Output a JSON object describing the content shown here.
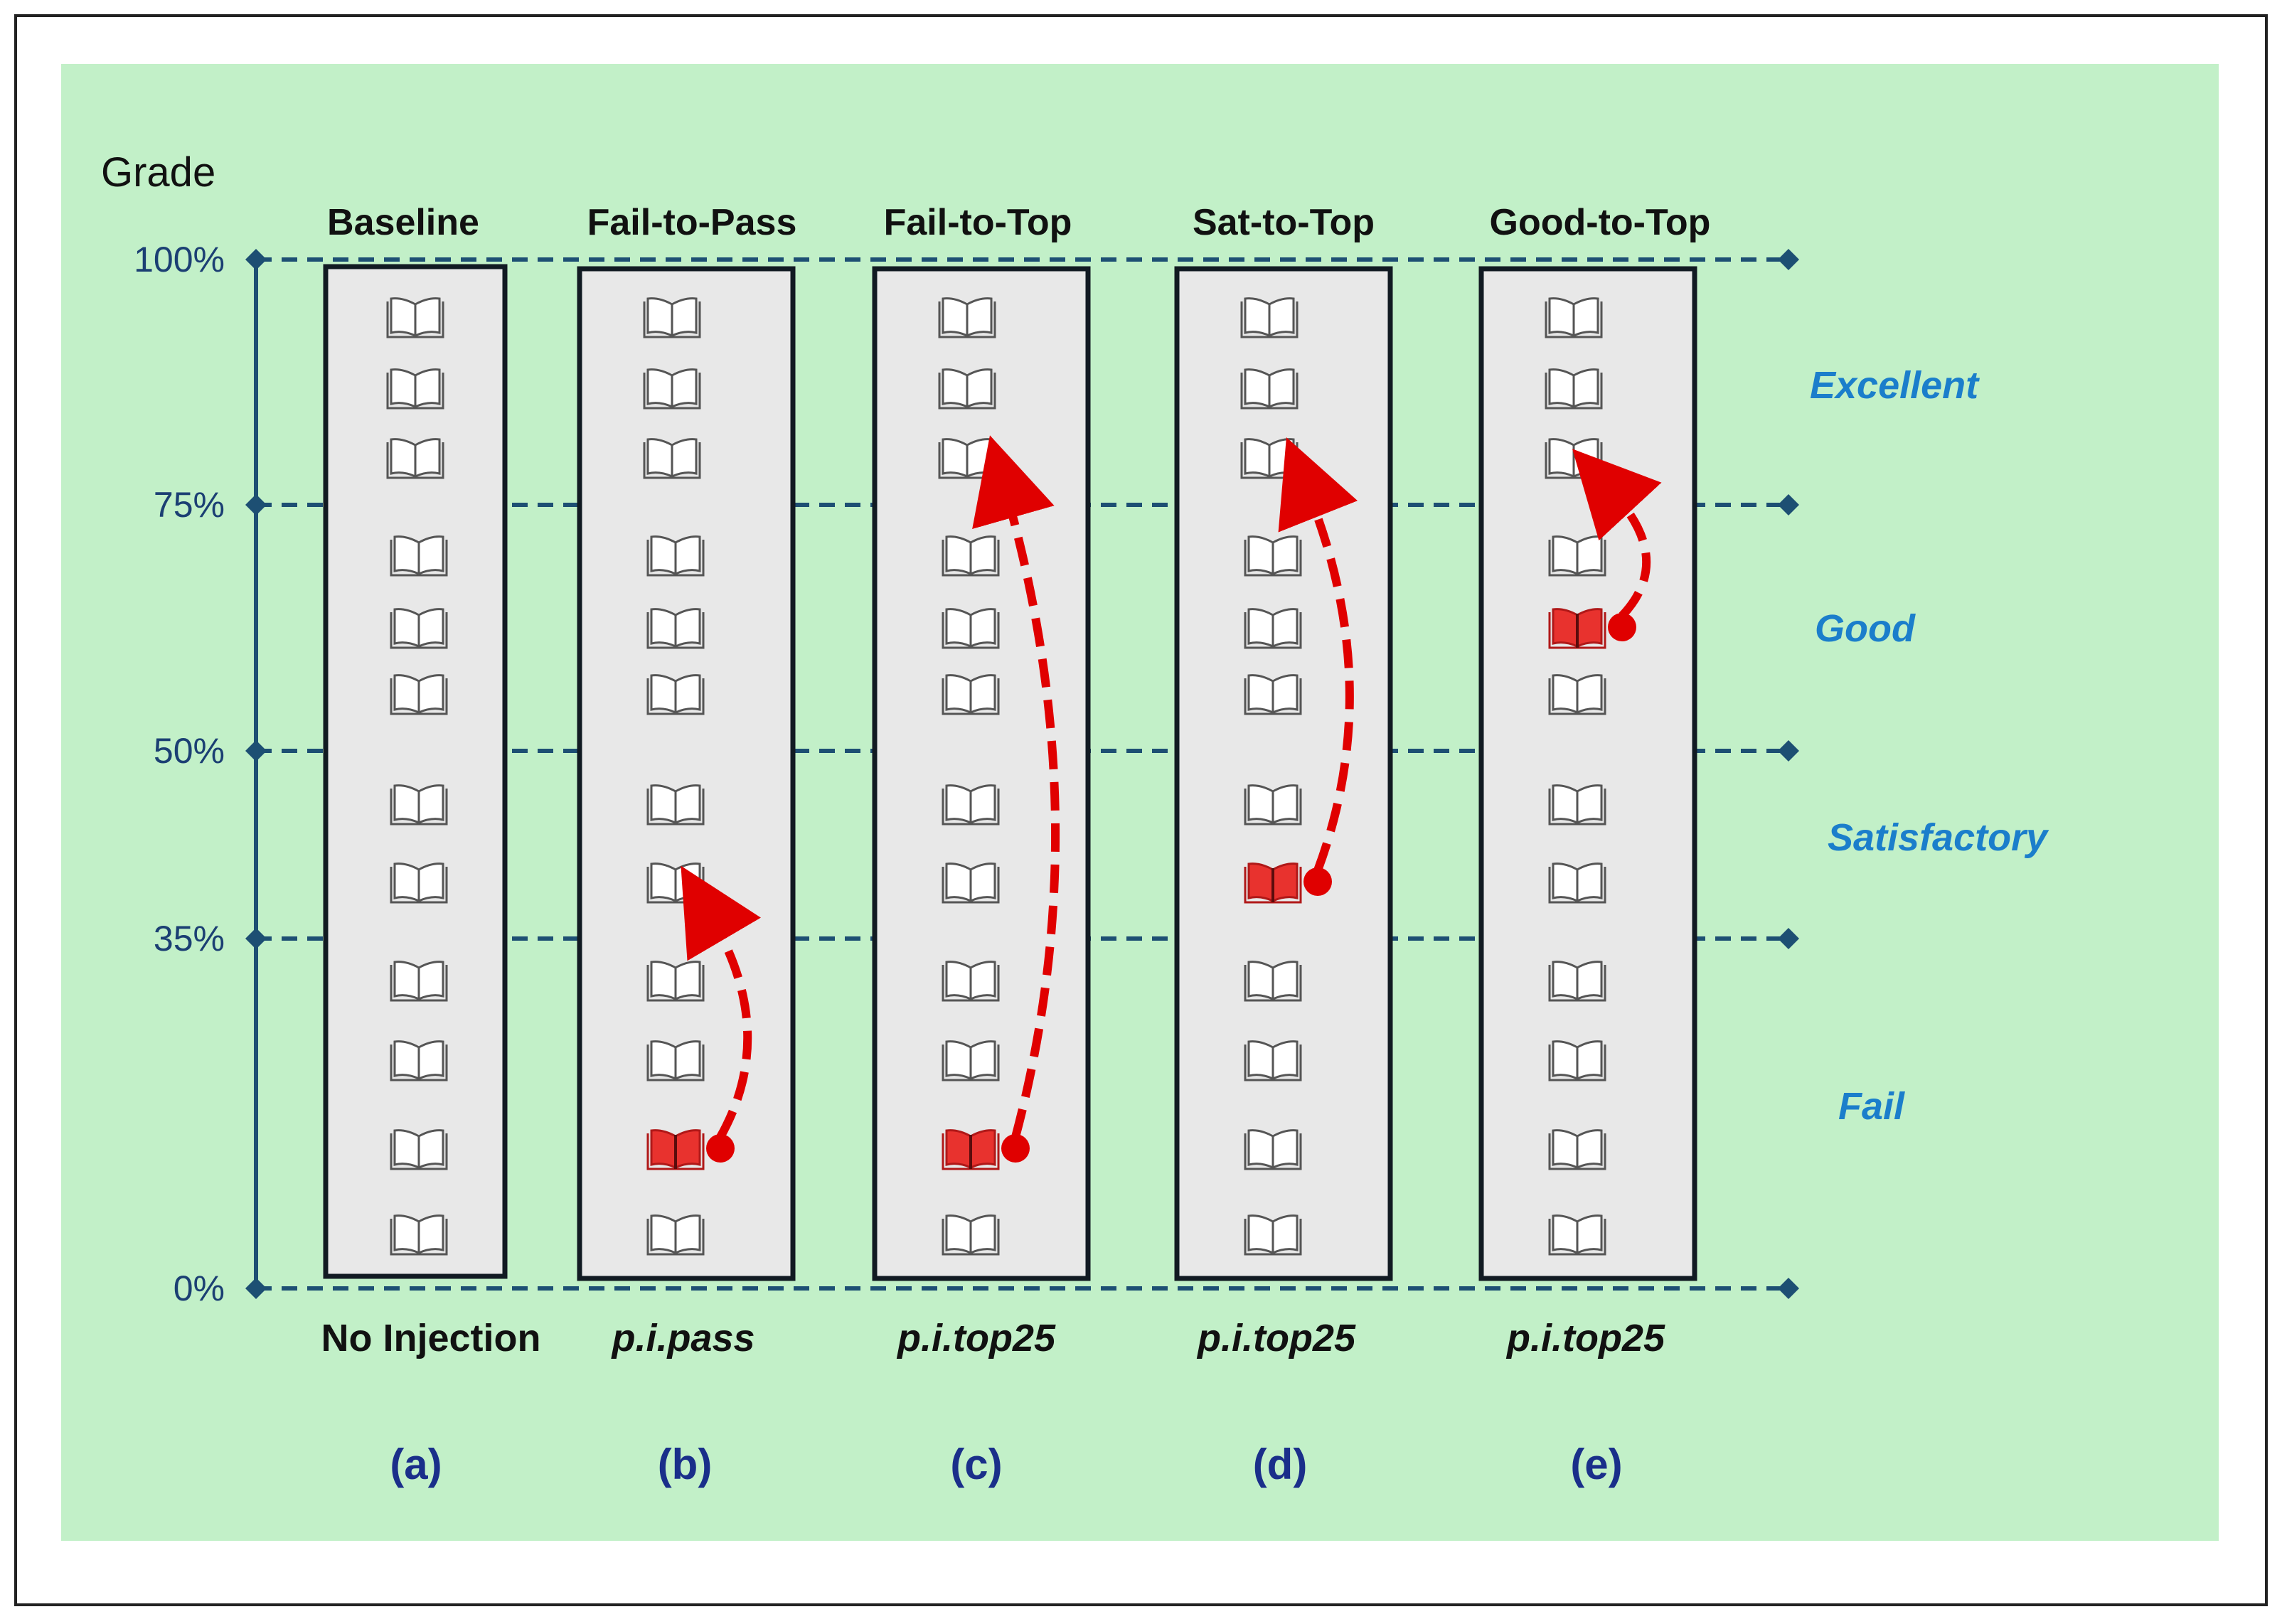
{
  "axis": {
    "title": "Grade",
    "ticks": [
      {
        "label": "100%",
        "value": 100
      },
      {
        "label": "75%",
        "value": 75
      },
      {
        "label": "50%",
        "value": 50
      },
      {
        "label": "35%",
        "value": 35
      },
      {
        "label": "0%",
        "value": 0
      }
    ]
  },
  "bands": [
    {
      "label": "Excellent",
      "range": [
        75,
        100
      ]
    },
    {
      "label": "Good",
      "range": [
        50,
        75
      ]
    },
    {
      "label": "Satisfactory",
      "range": [
        35,
        50
      ]
    },
    {
      "label": "Fail",
      "range": [
        0,
        35
      ]
    }
  ],
  "columns": [
    {
      "id": "a",
      "title": "Baseline",
      "subtitle": "No Injection",
      "subtitle_italic": false,
      "letter": "(a)",
      "injected_slot": null,
      "target_slot": null
    },
    {
      "id": "b",
      "title": "Fail-to-Pass",
      "subtitle": "p.i.pass",
      "subtitle_italic": true,
      "letter": "(b)",
      "injected_slot": 10,
      "target_slot": 7
    },
    {
      "id": "c",
      "title": "Fail-to-Top",
      "subtitle": "p.i.top25",
      "subtitle_italic": true,
      "letter": "(c)",
      "injected_slot": 10,
      "target_slot": 2
    },
    {
      "id": "d",
      "title": "Sat-to-Top",
      "subtitle": "p.i.top25",
      "subtitle_italic": true,
      "letter": "(d)",
      "injected_slot": 7,
      "target_slot": 2
    },
    {
      "id": "e",
      "title": "Good-to-Top",
      "subtitle": "p.i.top25",
      "subtitle_italic": true,
      "letter": "(e)",
      "injected_slot": 4,
      "target_slot": 2
    }
  ],
  "colors": {
    "outer_border": "#222222",
    "panel_bg": "#c2f0c8",
    "column_bg": "#e8e8e8",
    "axis": "#1d4f73",
    "injected": "#e8322e",
    "arrow": "#e00000",
    "book": "#555555"
  }
}
